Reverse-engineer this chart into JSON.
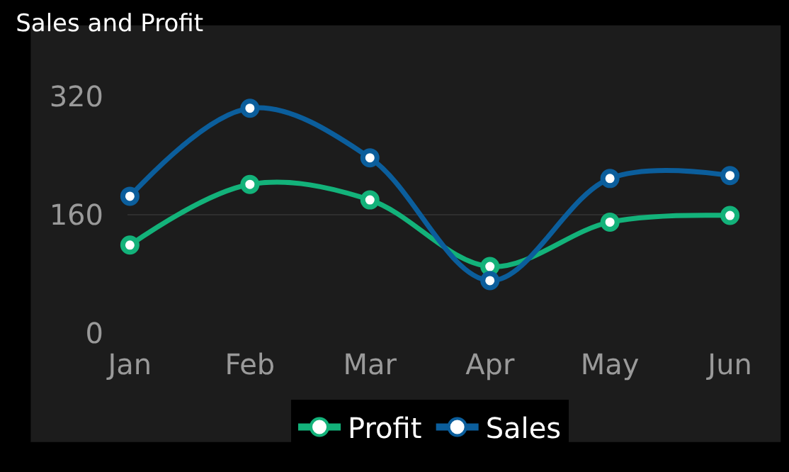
{
  "chart_data": {
    "type": "line",
    "title": "Sales and Profit",
    "categories": [
      "Jan",
      "Feb",
      "Mar",
      "Apr",
      "May",
      "Jun"
    ],
    "series": [
      {
        "name": "Profit",
        "color": "#13b27a",
        "values": [
          119,
          201,
          180,
          90,
          150,
          159
        ]
      },
      {
        "name": "Sales",
        "color": "#0b5e9c",
        "values": [
          185,
          304,
          237,
          71,
          209,
          213
        ]
      }
    ],
    "ylim": [
      0,
      320
    ],
    "yticks": [
      0,
      160,
      320
    ],
    "grid": "y",
    "legend": "bottom",
    "marker": "circle",
    "line_style": "solid"
  }
}
